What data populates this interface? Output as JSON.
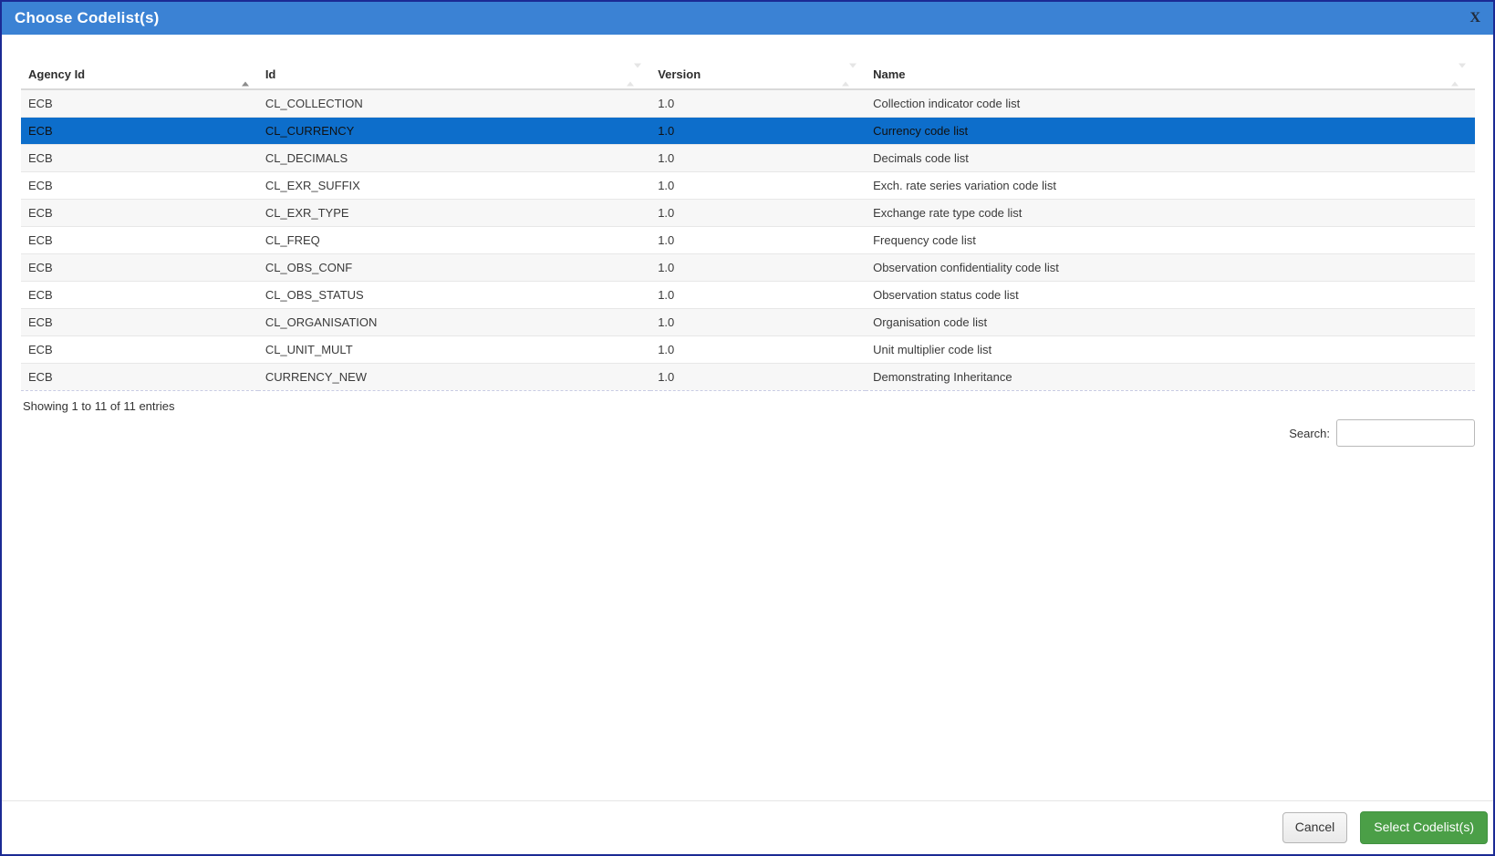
{
  "modal": {
    "title": "Choose Codelist(s)",
    "close_label": "X"
  },
  "table": {
    "columns": [
      {
        "label": "Agency Id",
        "sort": "asc"
      },
      {
        "label": "Id",
        "sort": "none"
      },
      {
        "label": "Version",
        "sort": "none"
      },
      {
        "label": "Name",
        "sort": "none"
      }
    ],
    "selected_index": 1,
    "rows": [
      {
        "agency_id": "ECB",
        "id": "CL_COLLECTION",
        "version": "1.0",
        "name": "Collection indicator code list"
      },
      {
        "agency_id": "ECB",
        "id": "CL_CURRENCY",
        "version": "1.0",
        "name": "Currency code list"
      },
      {
        "agency_id": "ECB",
        "id": "CL_DECIMALS",
        "version": "1.0",
        "name": "Decimals code list"
      },
      {
        "agency_id": "ECB",
        "id": "CL_EXR_SUFFIX",
        "version": "1.0",
        "name": "Exch. rate series variation code list"
      },
      {
        "agency_id": "ECB",
        "id": "CL_EXR_TYPE",
        "version": "1.0",
        "name": "Exchange rate type code list"
      },
      {
        "agency_id": "ECB",
        "id": "CL_FREQ",
        "version": "1.0",
        "name": "Frequency code list"
      },
      {
        "agency_id": "ECB",
        "id": "CL_OBS_CONF",
        "version": "1.0",
        "name": "Observation confidentiality code list"
      },
      {
        "agency_id": "ECB",
        "id": "CL_OBS_STATUS",
        "version": "1.0",
        "name": "Observation status code list"
      },
      {
        "agency_id": "ECB",
        "id": "CL_ORGANISATION",
        "version": "1.0",
        "name": "Organisation code list"
      },
      {
        "agency_id": "ECB",
        "id": "CL_UNIT_MULT",
        "version": "1.0",
        "name": "Unit multiplier code list"
      },
      {
        "agency_id": "ECB",
        "id": "CURRENCY_NEW",
        "version": "1.0",
        "name": "Demonstrating Inheritance"
      }
    ]
  },
  "info": {
    "showing_text": "Showing 1 to 11 of 11 entries"
  },
  "search": {
    "label": "Search:",
    "value": "",
    "placeholder": ""
  },
  "footer": {
    "cancel_label": "Cancel",
    "select_label": "Select Codelist(s)"
  },
  "colors": {
    "header_blue": "#3b82d4",
    "selected_blue": "#0d6ecb",
    "success_green": "#4b9f47",
    "modal_border": "#1b2a94"
  }
}
